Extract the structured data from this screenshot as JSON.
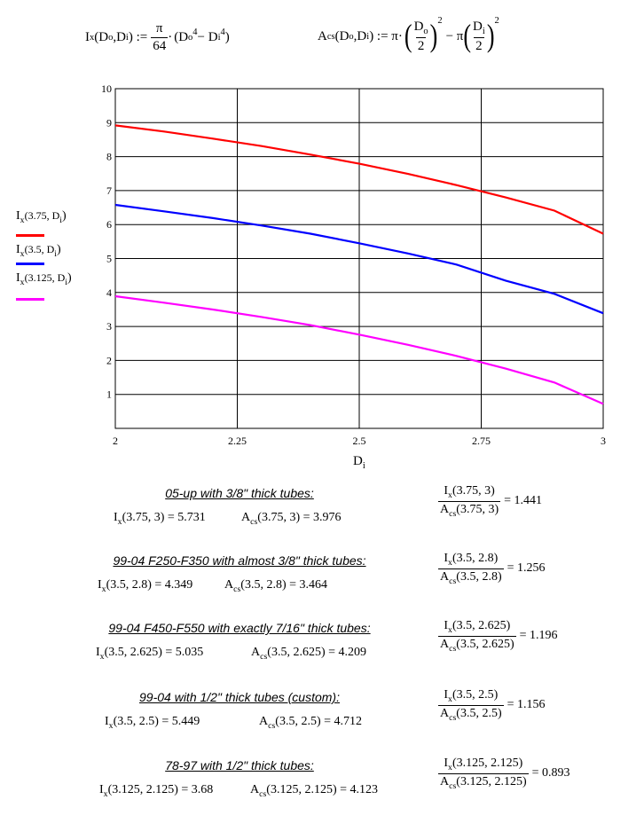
{
  "formulas": {
    "ix": {
      "lhs": "I",
      "lhs_sub": "x",
      "args": "(D",
      "args_o": "o",
      "comma": ",D",
      "args_i": "i",
      "close": ") :=",
      "pi": "π",
      "denom": "64",
      "dot": "·",
      "body_open": "(D",
      "o": "o",
      "p4": "4",
      "minus": " − D",
      "i": "i",
      "p4b": "4",
      "body_close": ")"
    },
    "acs": {
      "lhs": "A",
      "lhs_sub": "cs",
      "args": "(D",
      "args_o": "o",
      "comma": ",D",
      "args_i": "i",
      "close": ") := π·",
      "d_o": "D",
      "o": "o",
      "two": "2",
      "sq": "2",
      "minus": " − π",
      "d_i": "D",
      "i": "i",
      "two_b": "2",
      "sq_b": "2"
    }
  },
  "chart_data": {
    "type": "line",
    "x_label": "D",
    "x_label_sub": "i",
    "xlim": [
      2,
      3
    ],
    "ylim": [
      0,
      10
    ],
    "x_ticks": [
      "2",
      "2.25",
      "2.5",
      "2.75",
      "3"
    ],
    "y_ticks": [
      "1",
      "2",
      "3",
      "4",
      "5",
      "6",
      "7",
      "8",
      "9",
      "10"
    ],
    "grid": true,
    "legend_placement": "left",
    "series": [
      {
        "name": "I",
        "name_sub": "x",
        "name_args": "(3.75, D",
        "name_args_sub": "i",
        "name_close": ")",
        "Do": 3.75,
        "color": "#ff0000",
        "x": [
          2,
          2.1,
          2.2,
          2.3,
          2.4,
          2.5,
          2.6,
          2.7,
          2.8,
          2.9,
          3
        ],
        "y": [
          8.92,
          8.74,
          8.53,
          8.31,
          8.06,
          7.79,
          7.49,
          7.16,
          6.8,
          6.41,
          5.73
        ]
      },
      {
        "name": "I",
        "name_sub": "x",
        "name_args": "(3.5, D",
        "name_args_sub": "i",
        "name_close": ")",
        "Do": 3.5,
        "color": "#0000ff",
        "x": [
          2,
          2.1,
          2.2,
          2.3,
          2.4,
          2.5,
          2.6,
          2.7,
          2.8,
          2.9,
          3
        ],
        "y": [
          6.58,
          6.39,
          6.19,
          5.97,
          5.73,
          5.45,
          5.15,
          4.82,
          4.35,
          3.96,
          3.39
        ]
      },
      {
        "name": "I",
        "name_sub": "x",
        "name_args": "(3.125, D",
        "name_args_sub": "i",
        "name_close": ")",
        "Do": 3.125,
        "color": "#ff00ff",
        "x": [
          2,
          2.1,
          2.2,
          2.3,
          2.4,
          2.5,
          2.6,
          2.7,
          2.8,
          2.9,
          3
        ],
        "y": [
          3.89,
          3.7,
          3.5,
          3.28,
          3.04,
          2.76,
          2.46,
          2.13,
          1.76,
          1.35,
          0.72
        ]
      }
    ]
  },
  "results": [
    {
      "title": "05-up with 3/8\" thick tubes:",
      "ix_args": "(3.75, 3)",
      "ix_val": "= 5.731",
      "acs_args": "(3.75, 3)",
      "acs_val": "= 3.976",
      "ratio_num_args": "(3.75, 3)",
      "ratio_den_args": "(3.75, 3)",
      "ratio_val": "= 1.441"
    },
    {
      "title": "99-04 F250-F350 with almost 3/8\" thick tubes:",
      "ix_args": "(3.5, 2.8)",
      "ix_val": "= 4.349",
      "acs_args": "(3.5, 2.8)",
      "acs_val": "= 3.464",
      "ratio_num_args": "(3.5, 2.8)",
      "ratio_den_args": "(3.5, 2.8)",
      "ratio_val": "= 1.256"
    },
    {
      "title": "99-04 F450-F550 with exactly 7/16\" thick tubes:",
      "ix_args": "(3.5, 2.625)",
      "ix_val": "= 5.035",
      "acs_args": "(3.5, 2.625)",
      "acs_val": "= 4.209",
      "ratio_num_args": "(3.5, 2.625)",
      "ratio_den_args": "(3.5, 2.625)",
      "ratio_val": "= 1.196"
    },
    {
      "title": "99-04 with 1/2\" thick tubes (custom):",
      "ix_args": "(3.5, 2.5)",
      "ix_val": "= 5.449",
      "acs_args": "(3.5, 2.5)",
      "acs_val": "= 4.712",
      "ratio_num_args": "(3.5, 2.5)",
      "ratio_den_args": "(3.5, 2.5)",
      "ratio_val": "= 1.156"
    },
    {
      "title": "78-97 with 1/2\" thick tubes:",
      "ix_args": "(3.125, 2.125)",
      "ix_val": "= 3.68",
      "acs_args": "(3.125, 2.125)",
      "acs_val": "= 4.123",
      "ratio_num_args": "(3.125, 2.125)",
      "ratio_den_args": "(3.125, 2.125)",
      "ratio_val": "= 0.893"
    }
  ],
  "symbols": {
    "I": "I",
    "x": "x",
    "A": "A",
    "cs": "cs"
  }
}
